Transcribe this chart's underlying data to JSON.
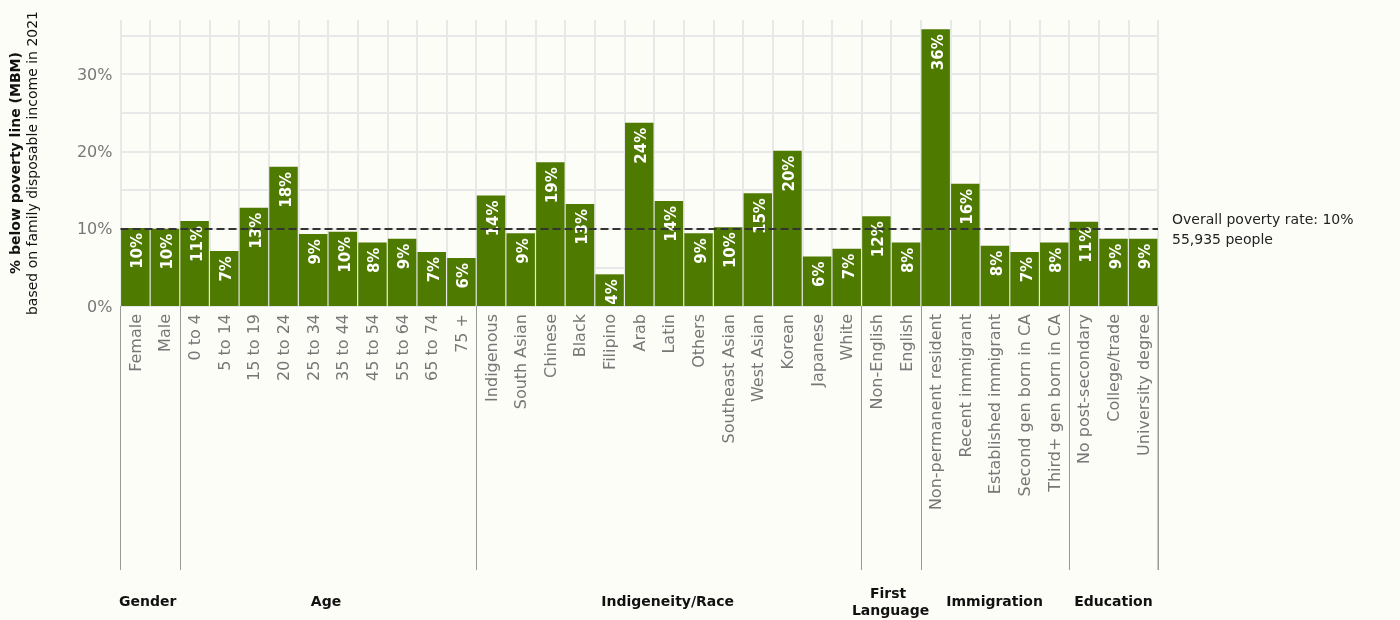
{
  "chart_data": {
    "type": "bar",
    "ylabel": "% below poverty line (MBM)\nbased on family disposable income in 2021",
    "categories": [
      "Female",
      "Male",
      "0 to 4",
      "5 to 14",
      "15 to 19",
      "20 to 24",
      "25 to 34",
      "35 to 44",
      "45 to 54",
      "55 to 64",
      "65 to 74",
      "75 +",
      "Indigenous",
      "South Asian",
      "Chinese",
      "Black",
      "Filipino",
      "Arab",
      "Latin",
      "Others",
      "Southeast Asian",
      "West Asian",
      "Korean",
      "Japanese",
      "White",
      "Non-English",
      "English",
      "Non-permanent resident",
      "Recent immigrant",
      "Established immigrant",
      "Second gen born in CA",
      "Third+ gen born in CA",
      "No post-secondary",
      "College/trade",
      "University degree"
    ],
    "values": [
      10.1,
      10.0,
      11.0,
      7.1,
      12.7,
      18.0,
      9.3,
      9.6,
      8.2,
      8.7,
      7.0,
      6.2,
      14.3,
      9.4,
      18.6,
      13.2,
      4.1,
      23.7,
      13.6,
      9.4,
      10.2,
      14.6,
      20.1,
      6.4,
      7.4,
      11.6,
      8.2,
      35.8,
      15.8,
      7.8,
      7.0,
      8.2,
      10.9,
      8.7,
      8.7
    ],
    "value_labels": [
      "10%",
      "10%",
      "11%",
      "7%",
      "13%",
      "18%",
      "9%",
      "10%",
      "8%",
      "9%",
      "7%",
      "6%",
      "14%",
      "9%",
      "19%",
      "13%",
      "4%",
      "24%",
      "14%",
      "9%",
      "10%",
      "15%",
      "20%",
      "6%",
      "7%",
      "12%",
      "8%",
      "36%",
      "16%",
      "8%",
      "7%",
      "8%",
      "11%",
      "9%",
      "9%"
    ],
    "color": "#4f7a00",
    "ylim": [
      0,
      37
    ],
    "yticks": [
      {
        "value": 0,
        "label": "0%"
      },
      {
        "value": 5,
        "label": null
      },
      {
        "value": 10,
        "label": "10%"
      },
      {
        "value": 15,
        "label": null
      },
      {
        "value": 20,
        "label": "20%"
      },
      {
        "value": 25,
        "label": null
      },
      {
        "value": 30,
        "label": "30%"
      },
      {
        "value": 35,
        "label": null
      }
    ],
    "grid": true,
    "ref_lines": [
      {
        "axis": "y",
        "value": 10,
        "label": "Overall poverty rate: 10%\n55,935 people",
        "color": "#333333",
        "line_style": "dashed"
      }
    ],
    "annotations": [
      "Gender",
      "Age",
      "Indigeneity/Race",
      "First Language",
      "Immigration",
      "Education"
    ]
  }
}
